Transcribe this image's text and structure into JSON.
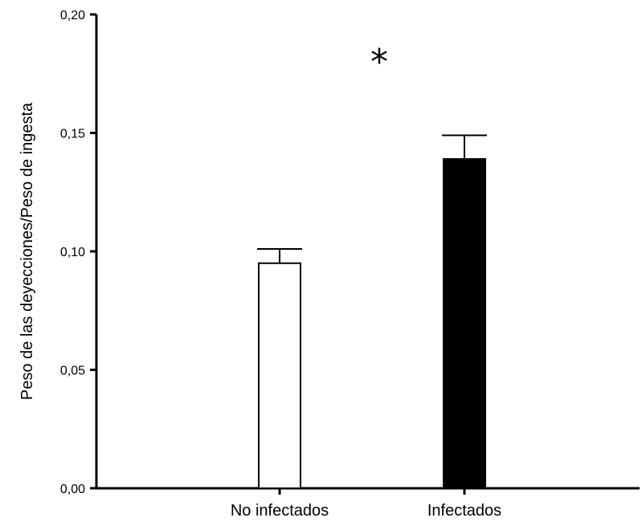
{
  "chart_data": {
    "type": "bar",
    "title": "",
    "xlabel": "",
    "ylabel": "Peso de las deyecciones/Peso de ingesta",
    "ylim": [
      0,
      0.2
    ],
    "yticks": [
      0,
      0.05,
      0.1,
      0.15,
      0.2
    ],
    "ytick_labels": [
      "0,00",
      "0,05",
      "0,10",
      "0,15",
      "0,20"
    ],
    "categories": [
      "No infectados",
      "Infectados"
    ],
    "values": [
      0.095,
      0.139
    ],
    "errors": [
      0.006,
      0.01
    ],
    "bar_colors": [
      "#ffffff",
      "#000000"
    ],
    "bar_edge_color": "#000000",
    "annotation": "*",
    "grid": false,
    "legend": "none"
  }
}
